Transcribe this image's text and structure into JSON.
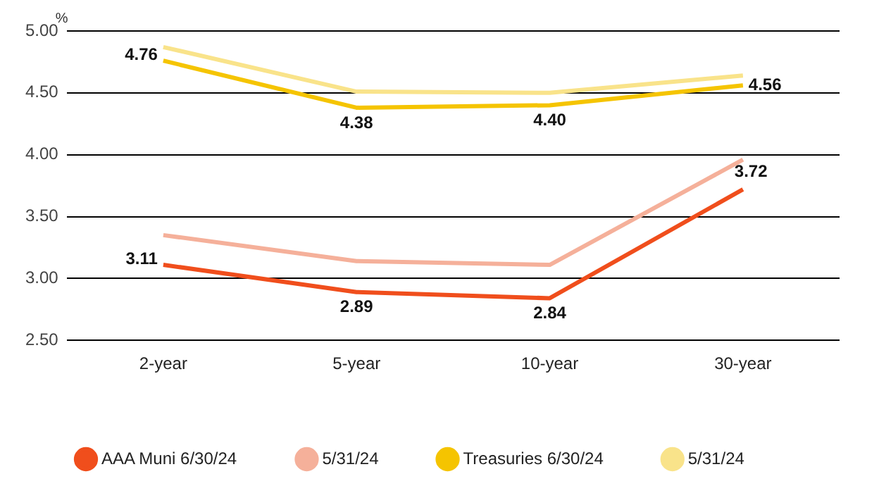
{
  "chart_data": {
    "type": "line",
    "ylabel": "%",
    "categories": [
      "2-year",
      "5-year",
      "10-year",
      "30-year"
    ],
    "series": [
      {
        "name": "AAA Muni 6/30/24",
        "color": "#f04e1c",
        "values": [
          3.11,
          2.89,
          2.84,
          3.72
        ],
        "value_labels": [
          "3.11",
          "2.89",
          "2.84",
          "3.72"
        ]
      },
      {
        "name": "5/31/24",
        "color": "#f5b09a",
        "values": [
          3.35,
          3.14,
          3.11,
          3.96
        ]
      },
      {
        "name": "Treasuries 6/30/24",
        "color": "#f5c400",
        "values": [
          4.76,
          4.38,
          4.4,
          4.56
        ],
        "value_labels": [
          "4.76",
          "4.38",
          "4.40",
          "4.56"
        ]
      },
      {
        "name": "5/31/24",
        "color": "#f9e38a",
        "values": [
          4.87,
          4.51,
          4.5,
          4.64
        ]
      }
    ],
    "ylim": [
      2.5,
      5.0
    ],
    "yticks": [
      {
        "value": 2.5,
        "label": "2.50"
      },
      {
        "value": 3.0,
        "label": "3.00"
      },
      {
        "value": 3.5,
        "label": "3.50"
      },
      {
        "value": 4.0,
        "label": "4.00"
      },
      {
        "value": 4.5,
        "label": "4.50"
      },
      {
        "value": 5.0,
        "label": "5.00"
      }
    ],
    "grid": "y",
    "legend": "bottom",
    "marker": "none",
    "line_style": "solid"
  }
}
